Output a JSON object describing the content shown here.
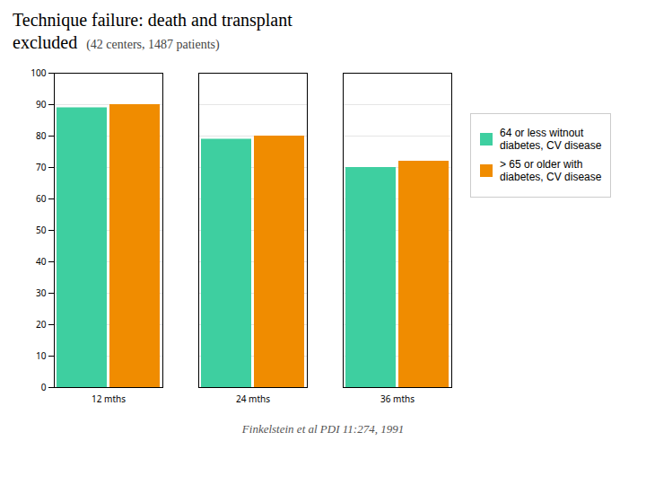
{
  "chart_data": {
    "type": "bar",
    "title": "Technique failure: death and transplant\nexcluded",
    "subtitle": "(42 centers, 1487 patients)",
    "annotations": [
      "Finkelstein et al PDI 11:274, 1991"
    ],
    "categories": [
      "12 mths",
      "24 mths",
      "36 mths"
    ],
    "series": [
      {
        "name": "64 or less witnout\ndiabetes, CV disease",
        "color": "#3ecfa0",
        "values": [
          89,
          79,
          70
        ]
      },
      {
        "name": "> 65 or older with\ndiabetes, CV disease",
        "color": "#f08c00",
        "values": [
          90,
          80,
          72
        ]
      }
    ],
    "ylim": [
      0,
      100
    ],
    "yticks": [
      0,
      10,
      20,
      30,
      40,
      50,
      60,
      70,
      80,
      90,
      100
    ],
    "grid": true,
    "legend": "right"
  }
}
